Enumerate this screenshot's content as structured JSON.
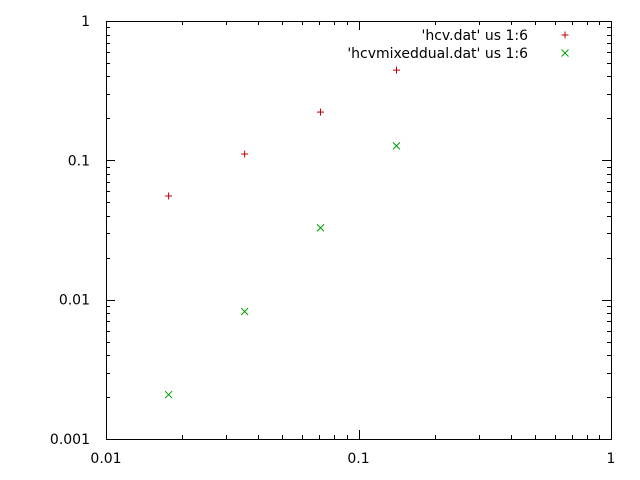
{
  "chart_data": {
    "type": "scatter",
    "title": "",
    "xlabel": "",
    "ylabel": "",
    "xscale": "log",
    "yscale": "log",
    "xlim": [
      0.01,
      1
    ],
    "ylim": [
      0.001,
      1
    ],
    "grid": false,
    "legend_position": "top-right",
    "x_ticks": [
      "0.01",
      "0.1",
      "1"
    ],
    "y_ticks": [
      "0.001",
      "0.01",
      "0.1",
      "1"
    ],
    "series": [
      {
        "name": "'hcv.dat' us 1:6",
        "marker": "plus",
        "color": "#c00000",
        "x": [
          0.0177,
          0.0354,
          0.0707,
          0.1414
        ],
        "y": [
          0.0555,
          0.111,
          0.222,
          0.444
        ]
      },
      {
        "name": "'hcvmixeddual.dat' us 1:6",
        "marker": "cross",
        "color": "#00a000",
        "x": [
          0.0177,
          0.0354,
          0.0707,
          0.1414
        ],
        "y": [
          0.00208,
          0.00822,
          0.0328,
          0.127
        ]
      }
    ]
  }
}
